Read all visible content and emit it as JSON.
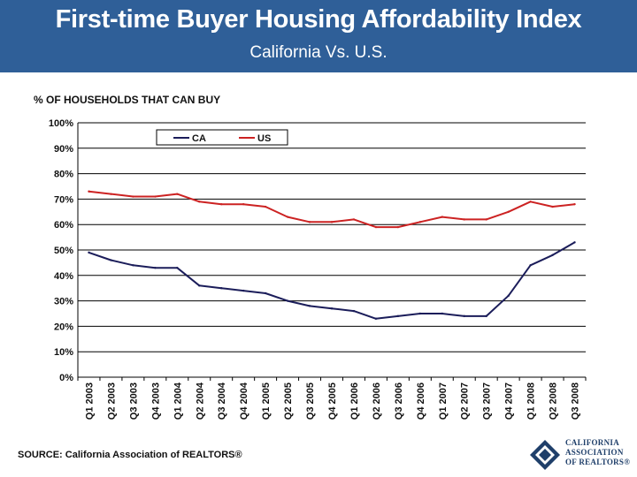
{
  "header": {
    "title": "First-time Buyer Housing Affordability Index",
    "subtitle": "California Vs. U.S."
  },
  "footer": {
    "source": "SOURCE: California Association of REALTORS®"
  },
  "logo": {
    "lines": [
      "CALIFORNIA",
      "ASSOCIATION",
      "OF REALTORS®"
    ]
  },
  "colors": {
    "header_bg": "#2f5f98",
    "ca": "#1b1d5a",
    "us": "#cc2222"
  },
  "chart_data": {
    "type": "line",
    "title": "",
    "ylabel": "% OF HOUSEHOLDS THAT CAN BUY",
    "xlabel": "",
    "ylim": [
      0,
      100
    ],
    "yticks": [
      "0%",
      "10%",
      "20%",
      "30%",
      "40%",
      "50%",
      "60%",
      "70%",
      "80%",
      "90%",
      "100%"
    ],
    "grid": true,
    "legend_position": "top-center",
    "categories": [
      "Q1 2003",
      "Q2 2003",
      "Q3 2003",
      "Q4 2003",
      "Q1 2004",
      "Q2 2004",
      "Q3 2004",
      "Q4 2004",
      "Q1 2005",
      "Q2 2005",
      "Q3 2005",
      "Q4 2005",
      "Q1 2006",
      "Q2 2006",
      "Q3 2006",
      "Q4 2006",
      "Q1 2007",
      "Q2 2007",
      "Q3 2007",
      "Q4 2007",
      "Q1 2008",
      "Q2 2008",
      "Q3 2008"
    ],
    "series": [
      {
        "name": "CA",
        "color": "#1b1d5a",
        "values": [
          49,
          46,
          44,
          43,
          43,
          36,
          35,
          34,
          33,
          30,
          28,
          27,
          26,
          23,
          24,
          25,
          25,
          24,
          24,
          32,
          44,
          48,
          53
        ]
      },
      {
        "name": "US",
        "color": "#cc2222",
        "values": [
          73,
          72,
          71,
          71,
          72,
          69,
          68,
          68,
          67,
          63,
          61,
          61,
          62,
          59,
          59,
          61,
          63,
          62,
          62,
          65,
          69,
          67,
          68
        ]
      }
    ]
  }
}
